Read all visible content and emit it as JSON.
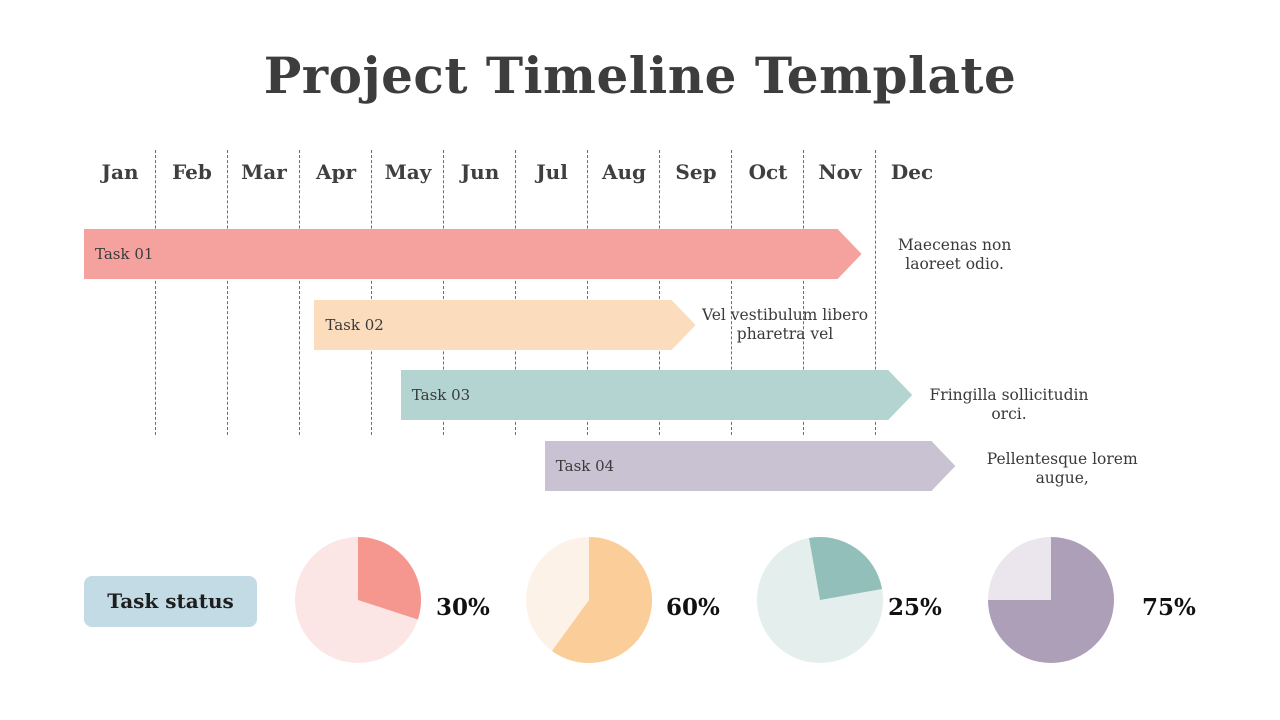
{
  "title": "Project Timeline Template",
  "chart_data": [
    {
      "type": "gantt",
      "months": [
        "Jan",
        "Feb",
        "Mar",
        "Apr",
        "May",
        "Jun",
        "Jul",
        "Aug",
        "Sep",
        "Oct",
        "Nov",
        "Dec"
      ],
      "tasks": [
        {
          "label": "Task 01",
          "start": 0.0,
          "end": 10.8,
          "note": "Maecenas non laoreet odio.",
          "color": "#f5a29e"
        },
        {
          "label": "Task 02",
          "start": 3.2,
          "end": 8.5,
          "note": "Vel vestibulum libero pharetra vel",
          "color": "#fbdcbd"
        },
        {
          "label": "Task 03",
          "start": 4.4,
          "end": 11.5,
          "note": "Fringilla sollicitudin orci.",
          "color": "#b3d4d1"
        },
        {
          "label": "Task 04",
          "start": 6.4,
          "end": 12.1,
          "note": "Pellentesque lorem augue,",
          "color": "#c9c2d2"
        }
      ]
    },
    {
      "type": "pie",
      "heading": "Task status",
      "items": [
        {
          "percent": 30,
          "label": "30%",
          "color": "#f5978f",
          "track": "#fce6e5",
          "start_angle": 0
        },
        {
          "percent": 60,
          "label": "60%",
          "color": "#fbcd99",
          "track": "#fdf2e8",
          "start_angle": 0
        },
        {
          "percent": 25,
          "label": "25%",
          "color": "#93bfba",
          "track": "#e4eeed",
          "start_angle": -10
        },
        {
          "percent": 75,
          "label": "75%",
          "color": "#ae9fb8",
          "track": "#ebe6ee",
          "start_angle": 0
        }
      ]
    }
  ]
}
